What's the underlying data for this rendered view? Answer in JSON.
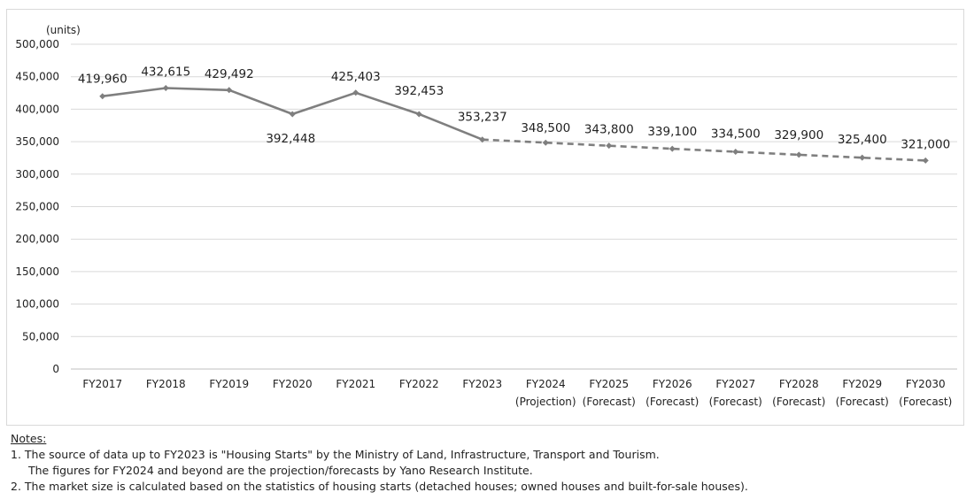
{
  "chart_data": {
    "type": "line",
    "unit_label": "(units)",
    "ylim": [
      0,
      500000
    ],
    "y_ticks": [
      "0",
      "50,000",
      "100,000",
      "150,000",
      "200,000",
      "250,000",
      "300,000",
      "350,000",
      "400,000",
      "450,000",
      "500,000"
    ],
    "categories": [
      {
        "label": "FY2017",
        "sub": ""
      },
      {
        "label": "FY2018",
        "sub": ""
      },
      {
        "label": "FY2019",
        "sub": ""
      },
      {
        "label": "FY2020",
        "sub": ""
      },
      {
        "label": "FY2021",
        "sub": ""
      },
      {
        "label": "FY2022",
        "sub": ""
      },
      {
        "label": "FY2023",
        "sub": ""
      },
      {
        "label": "FY2024",
        "sub": "(Projection)"
      },
      {
        "label": "FY2025",
        "sub": "(Forecast)"
      },
      {
        "label": "FY2026",
        "sub": "(Forecast)"
      },
      {
        "label": "FY2027",
        "sub": "(Forecast)"
      },
      {
        "label": "FY2028",
        "sub": "(Forecast)"
      },
      {
        "label": "FY2029",
        "sub": "(Forecast)"
      },
      {
        "label": "FY2030",
        "sub": "(Forecast)"
      }
    ],
    "values": [
      419960,
      432615,
      429492,
      392448,
      425403,
      392453,
      353237,
      348500,
      343800,
      339100,
      334500,
      329900,
      325400,
      321000
    ],
    "value_labels": [
      "419,960",
      "432,615",
      "429,492",
      "392,448",
      "425,403",
      "392,453",
      "353,237",
      "348,500",
      "343,800",
      "339,100",
      "334,500",
      "329,900",
      "325,400",
      "321,000"
    ],
    "actual_through_index": 6,
    "line_color": "#7f7f7f",
    "grid": true
  },
  "notes": {
    "title": "Notes:",
    "items": [
      "1.  The source of data up to FY2023 is \"Housing Starts\" by the Ministry of Land, Infrastructure, Transport and Tourism.",
      "The figures for FY2024 and beyond are the projection/forecasts by Yano Research Institute.",
      "2.  The market size is calculated based on the statistics of housing starts (detached houses; owned houses and built-for-sale houses)."
    ]
  }
}
